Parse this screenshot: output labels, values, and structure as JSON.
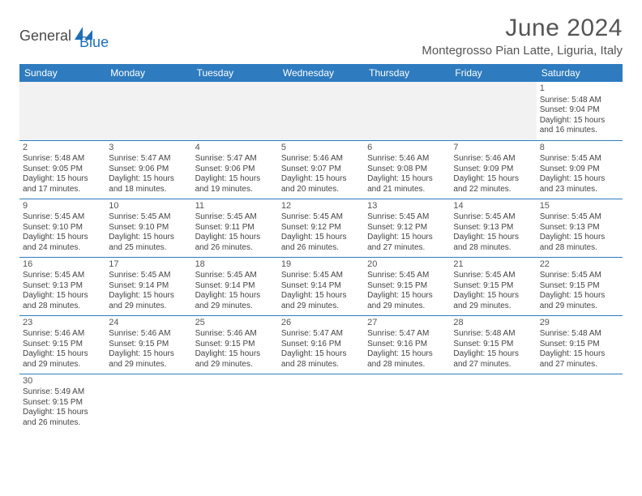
{
  "logo": {
    "text1": "General",
    "text2": "Blue"
  },
  "title": "June 2024",
  "location": "Montegrosso Pian Latte, Liguria, Italy",
  "colors": {
    "header_bg": "#2e7bbf",
    "header_text": "#ffffff",
    "border": "#2e7bbf",
    "empty_bg": "#f2f2f2",
    "text": "#444444",
    "title_text": "#555555",
    "logo_gray": "#4a4a4a",
    "logo_blue": "#1e6fb8"
  },
  "days_of_week": [
    "Sunday",
    "Monday",
    "Tuesday",
    "Wednesday",
    "Thursday",
    "Friday",
    "Saturday"
  ],
  "weeks": [
    [
      null,
      null,
      null,
      null,
      null,
      null,
      {
        "n": "1",
        "sr": "Sunrise: 5:48 AM",
        "ss": "Sunset: 9:04 PM",
        "d1": "Daylight: 15 hours",
        "d2": "and 16 minutes."
      }
    ],
    [
      {
        "n": "2",
        "sr": "Sunrise: 5:48 AM",
        "ss": "Sunset: 9:05 PM",
        "d1": "Daylight: 15 hours",
        "d2": "and 17 minutes."
      },
      {
        "n": "3",
        "sr": "Sunrise: 5:47 AM",
        "ss": "Sunset: 9:06 PM",
        "d1": "Daylight: 15 hours",
        "d2": "and 18 minutes."
      },
      {
        "n": "4",
        "sr": "Sunrise: 5:47 AM",
        "ss": "Sunset: 9:06 PM",
        "d1": "Daylight: 15 hours",
        "d2": "and 19 minutes."
      },
      {
        "n": "5",
        "sr": "Sunrise: 5:46 AM",
        "ss": "Sunset: 9:07 PM",
        "d1": "Daylight: 15 hours",
        "d2": "and 20 minutes."
      },
      {
        "n": "6",
        "sr": "Sunrise: 5:46 AM",
        "ss": "Sunset: 9:08 PM",
        "d1": "Daylight: 15 hours",
        "d2": "and 21 minutes."
      },
      {
        "n": "7",
        "sr": "Sunrise: 5:46 AM",
        "ss": "Sunset: 9:09 PM",
        "d1": "Daylight: 15 hours",
        "d2": "and 22 minutes."
      },
      {
        "n": "8",
        "sr": "Sunrise: 5:45 AM",
        "ss": "Sunset: 9:09 PM",
        "d1": "Daylight: 15 hours",
        "d2": "and 23 minutes."
      }
    ],
    [
      {
        "n": "9",
        "sr": "Sunrise: 5:45 AM",
        "ss": "Sunset: 9:10 PM",
        "d1": "Daylight: 15 hours",
        "d2": "and 24 minutes."
      },
      {
        "n": "10",
        "sr": "Sunrise: 5:45 AM",
        "ss": "Sunset: 9:10 PM",
        "d1": "Daylight: 15 hours",
        "d2": "and 25 minutes."
      },
      {
        "n": "11",
        "sr": "Sunrise: 5:45 AM",
        "ss": "Sunset: 9:11 PM",
        "d1": "Daylight: 15 hours",
        "d2": "and 26 minutes."
      },
      {
        "n": "12",
        "sr": "Sunrise: 5:45 AM",
        "ss": "Sunset: 9:12 PM",
        "d1": "Daylight: 15 hours",
        "d2": "and 26 minutes."
      },
      {
        "n": "13",
        "sr": "Sunrise: 5:45 AM",
        "ss": "Sunset: 9:12 PM",
        "d1": "Daylight: 15 hours",
        "d2": "and 27 minutes."
      },
      {
        "n": "14",
        "sr": "Sunrise: 5:45 AM",
        "ss": "Sunset: 9:13 PM",
        "d1": "Daylight: 15 hours",
        "d2": "and 28 minutes."
      },
      {
        "n": "15",
        "sr": "Sunrise: 5:45 AM",
        "ss": "Sunset: 9:13 PM",
        "d1": "Daylight: 15 hours",
        "d2": "and 28 minutes."
      }
    ],
    [
      {
        "n": "16",
        "sr": "Sunrise: 5:45 AM",
        "ss": "Sunset: 9:13 PM",
        "d1": "Daylight: 15 hours",
        "d2": "and 28 minutes."
      },
      {
        "n": "17",
        "sr": "Sunrise: 5:45 AM",
        "ss": "Sunset: 9:14 PM",
        "d1": "Daylight: 15 hours",
        "d2": "and 29 minutes."
      },
      {
        "n": "18",
        "sr": "Sunrise: 5:45 AM",
        "ss": "Sunset: 9:14 PM",
        "d1": "Daylight: 15 hours",
        "d2": "and 29 minutes."
      },
      {
        "n": "19",
        "sr": "Sunrise: 5:45 AM",
        "ss": "Sunset: 9:14 PM",
        "d1": "Daylight: 15 hours",
        "d2": "and 29 minutes."
      },
      {
        "n": "20",
        "sr": "Sunrise: 5:45 AM",
        "ss": "Sunset: 9:15 PM",
        "d1": "Daylight: 15 hours",
        "d2": "and 29 minutes."
      },
      {
        "n": "21",
        "sr": "Sunrise: 5:45 AM",
        "ss": "Sunset: 9:15 PM",
        "d1": "Daylight: 15 hours",
        "d2": "and 29 minutes."
      },
      {
        "n": "22",
        "sr": "Sunrise: 5:45 AM",
        "ss": "Sunset: 9:15 PM",
        "d1": "Daylight: 15 hours",
        "d2": "and 29 minutes."
      }
    ],
    [
      {
        "n": "23",
        "sr": "Sunrise: 5:46 AM",
        "ss": "Sunset: 9:15 PM",
        "d1": "Daylight: 15 hours",
        "d2": "and 29 minutes."
      },
      {
        "n": "24",
        "sr": "Sunrise: 5:46 AM",
        "ss": "Sunset: 9:15 PM",
        "d1": "Daylight: 15 hours",
        "d2": "and 29 minutes."
      },
      {
        "n": "25",
        "sr": "Sunrise: 5:46 AM",
        "ss": "Sunset: 9:15 PM",
        "d1": "Daylight: 15 hours",
        "d2": "and 29 minutes."
      },
      {
        "n": "26",
        "sr": "Sunrise: 5:47 AM",
        "ss": "Sunset: 9:16 PM",
        "d1": "Daylight: 15 hours",
        "d2": "and 28 minutes."
      },
      {
        "n": "27",
        "sr": "Sunrise: 5:47 AM",
        "ss": "Sunset: 9:16 PM",
        "d1": "Daylight: 15 hours",
        "d2": "and 28 minutes."
      },
      {
        "n": "28",
        "sr": "Sunrise: 5:48 AM",
        "ss": "Sunset: 9:15 PM",
        "d1": "Daylight: 15 hours",
        "d2": "and 27 minutes."
      },
      {
        "n": "29",
        "sr": "Sunrise: 5:48 AM",
        "ss": "Sunset: 9:15 PM",
        "d1": "Daylight: 15 hours",
        "d2": "and 27 minutes."
      }
    ],
    [
      {
        "n": "30",
        "sr": "Sunrise: 5:49 AM",
        "ss": "Sunset: 9:15 PM",
        "d1": "Daylight: 15 hours",
        "d2": "and 26 minutes."
      },
      null,
      null,
      null,
      null,
      null,
      null
    ]
  ]
}
